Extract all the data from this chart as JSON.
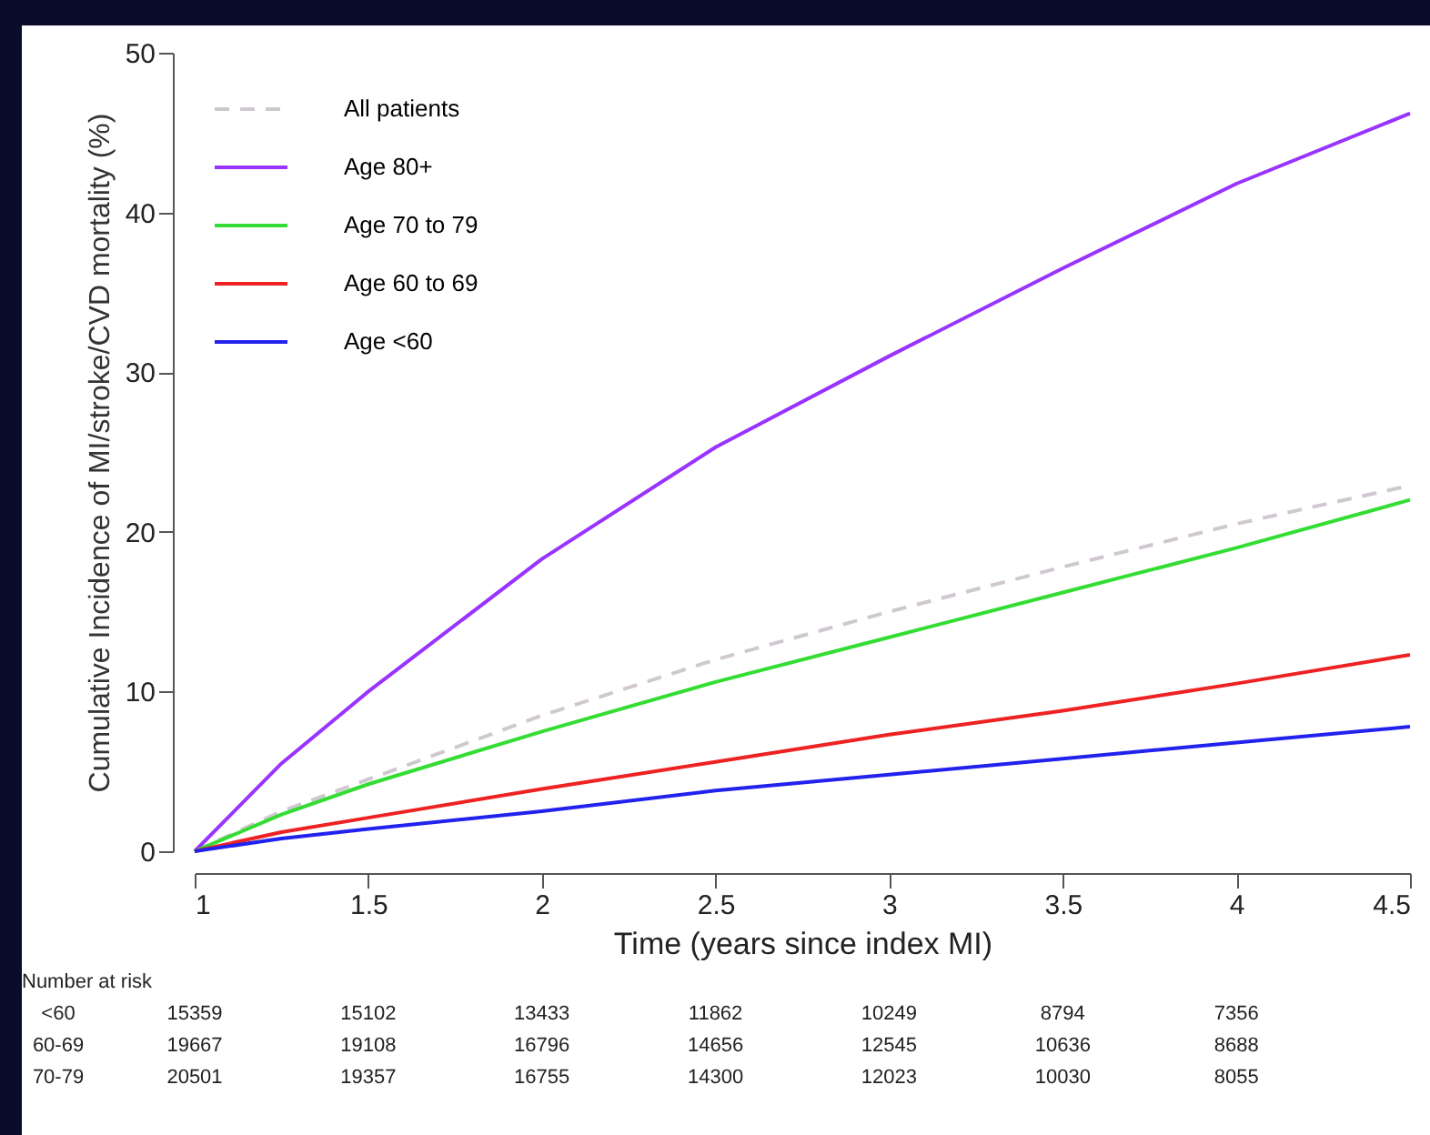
{
  "chart_data": {
    "type": "line",
    "xlabel": "Time (years since index MI)",
    "ylabel": "Cumulative Incidence of MI/stroke/CVD mortality (%)",
    "x": [
      1,
      1.25,
      1.5,
      2,
      2.5,
      3,
      3.5,
      4,
      4.5
    ],
    "series": [
      {
        "name": "All patients",
        "color": "#d0c8d0",
        "line_style": "dashed",
        "values": [
          0,
          2.5,
          4.5,
          8.5,
          12,
          15,
          17.8,
          20.5,
          22.9
        ]
      },
      {
        "name": "Age 80+",
        "color": "#9933ff",
        "values": [
          0,
          5.5,
          10,
          18.3,
          25.3,
          31,
          36.5,
          41.8,
          46.2
        ]
      },
      {
        "name": "Age 70 to 79",
        "color": "#33dd33",
        "values": [
          0,
          2.3,
          4.2,
          7.5,
          10.6,
          13.4,
          16.2,
          19,
          22
        ]
      },
      {
        "name": "Age 60 to 69",
        "color": "#ee2222",
        "values": [
          0,
          1.2,
          2.1,
          3.9,
          5.6,
          7.3,
          8.8,
          10.5,
          12.3
        ]
      },
      {
        "name": "Age <60",
        "color": "#2222ee",
        "values": [
          0,
          0.8,
          1.4,
          2.5,
          3.8,
          4.8,
          5.8,
          6.8,
          7.8
        ]
      }
    ],
    "xlim": [
      1,
      4.5
    ],
    "xticks": [
      1,
      1.5,
      2,
      2.5,
      3,
      3.5,
      4,
      4.5
    ],
    "ylim": [
      0,
      50
    ],
    "yticks": [
      0,
      10,
      20,
      30,
      40,
      50
    ],
    "grid": false,
    "legend": "top left",
    "line_style": "solid",
    "marker": "none",
    "annotations": [
      "Number at risk",
      "<60 15359 15102 13433 11862 10249 8794 7356",
      "60-69 19667 19108 16796 14656 12545 10636 8688",
      "70-79 20501 19357 16755 14300 12023 10030 8055"
    ]
  }
}
